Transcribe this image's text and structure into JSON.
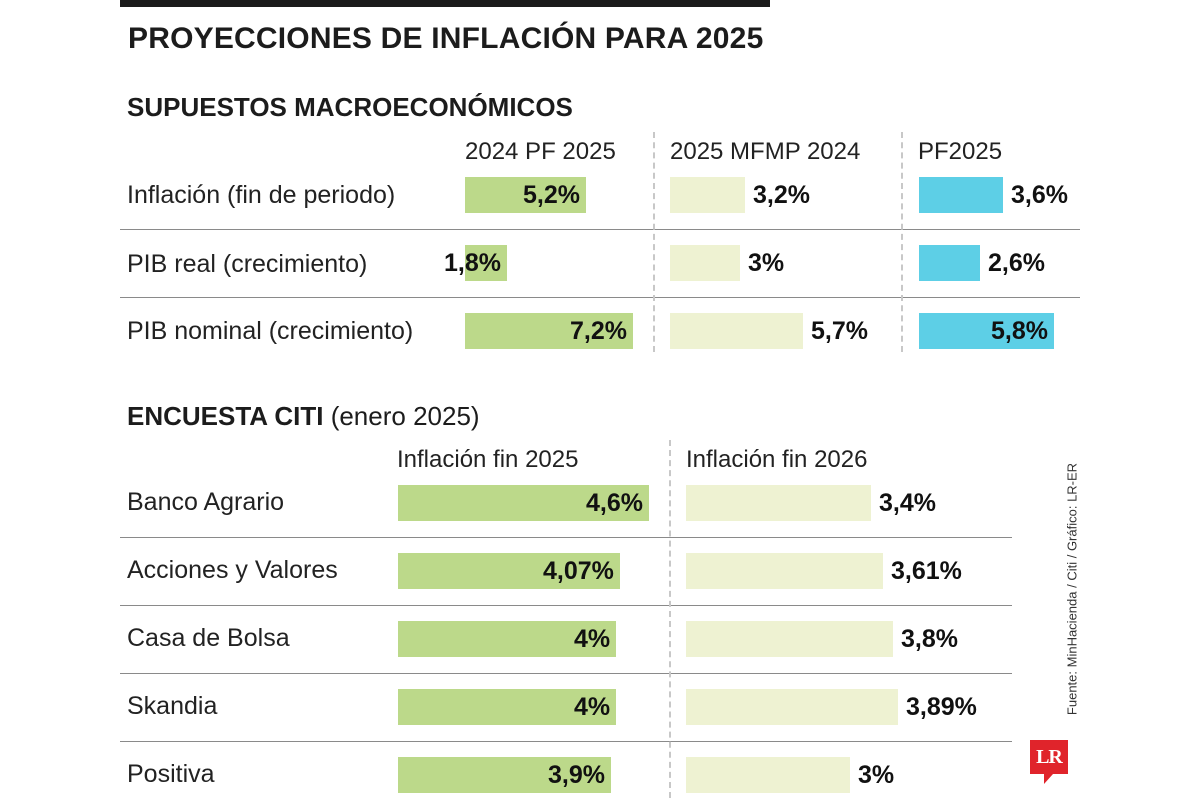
{
  "title": "PROYECCIONES DE INFLACIÓN PARA 2025",
  "section1": {
    "title": "SUPUESTOS MACROECONÓMICOS",
    "columns": [
      "2024 PF 2025",
      "2025 MFMP 2024",
      "PF2025"
    ],
    "rows": [
      "Inflación (fin de periodo)",
      "PIB real (crecimiento)",
      "PIB nominal (crecimiento)"
    ]
  },
  "section2": {
    "title": "ENCUESTA CITI",
    "note": "(enero 2025)",
    "columns": [
      "Inflación fin 2025",
      "Inflación fin 2026"
    ],
    "rows": [
      "Banco Agrario",
      "Acciones y Valores",
      "Casa de Bolsa",
      "Skandia",
      "Positiva"
    ]
  },
  "source": "Fuente: MinHacienda / Citi / Gráfico: LR-ER",
  "logo": "LR",
  "colors": {
    "green": "#bcd98a",
    "cream": "#eef2d2",
    "cyan": "#5dcfe6",
    "divider": "#8a8a8a",
    "logo": "#e0242b"
  },
  "chart_data": [
    {
      "type": "bar",
      "title": "SUPUESTOS MACROECONÓMICOS",
      "categories": [
        "Inflación (fin de periodo)",
        "PIB real (crecimiento)",
        "PIB nominal (crecimiento)"
      ],
      "series": [
        {
          "name": "2024 PF 2025",
          "values": [
            5.2,
            1.8,
            7.2
          ],
          "labels": [
            "5,2%",
            "1,8%",
            "7,2%"
          ],
          "color": "#bcd98a"
        },
        {
          "name": "2025 MFMP 2024",
          "values": [
            3.2,
            3,
            5.7
          ],
          "labels": [
            "3,2%",
            "3%",
            "5,7%"
          ],
          "color": "#eef2d2"
        },
        {
          "name": "PF2025",
          "values": [
            3.6,
            2.6,
            5.8
          ],
          "labels": [
            "3,6%",
            "2,6%",
            "5,8%"
          ],
          "color": "#5dcfe6"
        }
      ],
      "unit": "%"
    },
    {
      "type": "bar",
      "title": "ENCUESTA CITI",
      "categories": [
        "Banco Agrario",
        "Acciones y Valores",
        "Casa de Bolsa",
        "Skandia",
        "Positiva"
      ],
      "series": [
        {
          "name": "Inflación fin 2025",
          "values": [
            4.6,
            4.07,
            4,
            4,
            3.9
          ],
          "labels": [
            "4,6%",
            "4,07%",
            "4%",
            "4%",
            "3,9%"
          ],
          "color": "#bcd98a"
        },
        {
          "name": "Inflación fin 2026",
          "values": [
            3.4,
            3.61,
            3.8,
            3.89,
            3
          ],
          "labels": [
            "3,4%",
            "3,61%",
            "3,8%",
            "3,89%",
            "3%"
          ],
          "color": "#eef2d2"
        }
      ],
      "unit": "%"
    }
  ]
}
